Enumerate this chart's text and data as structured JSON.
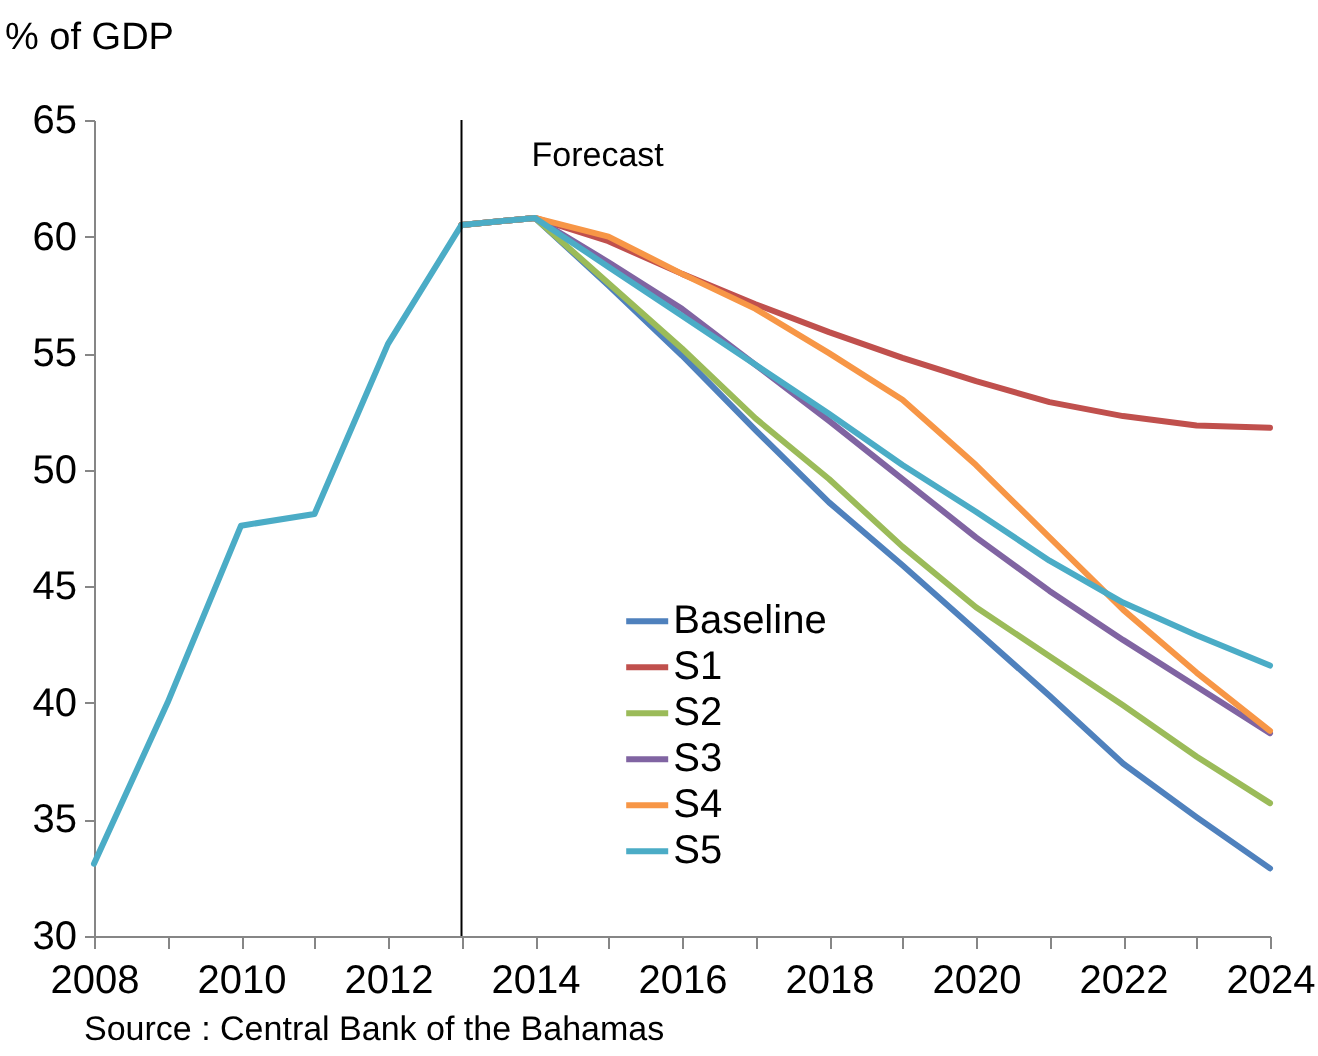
{
  "chart_data": {
    "type": "line",
    "ylabel": "% of GDP",
    "x": [
      2008,
      2009,
      2010,
      2011,
      2012,
      2013,
      2014,
      2015,
      2016,
      2017,
      2018,
      2019,
      2020,
      2021,
      2022,
      2023,
      2024
    ],
    "xlim": [
      2008,
      2024
    ],
    "xticks": [
      2008,
      {
        "value": 2009,
        "label": null
      },
      2010,
      {
        "value": 2011,
        "label": null
      },
      2012,
      {
        "value": 2013,
        "label": null
      },
      2014,
      {
        "value": 2015,
        "label": null
      },
      2016,
      {
        "value": 2017,
        "label": null
      },
      2018,
      {
        "value": 2019,
        "label": null
      },
      2020,
      {
        "value": 2021,
        "label": null
      },
      2022,
      {
        "value": 2023,
        "label": null
      },
      2024
    ],
    "ylim": [
      30,
      65
    ],
    "yticks": [
      30,
      35,
      40,
      45,
      50,
      55,
      60,
      65
    ],
    "series": [
      {
        "name": "Baseline",
        "color": "#4f81bd",
        "values": [
          null,
          null,
          null,
          null,
          null,
          60.5,
          60.8,
          57.9,
          54.9,
          51.7,
          48.6,
          45.9,
          43.1,
          40.3,
          37.4,
          35.1,
          32.9
        ]
      },
      {
        "name": "S1",
        "color": "#c0504d",
        "values": [
          null,
          null,
          null,
          null,
          null,
          60.5,
          60.8,
          59.8,
          58.4,
          57.1,
          55.9,
          54.8,
          53.8,
          52.9,
          52.3,
          51.9,
          51.8
        ]
      },
      {
        "name": "S2",
        "color": "#9bbb59",
        "values": [
          null,
          null,
          null,
          null,
          null,
          60.5,
          60.8,
          58.0,
          55.2,
          52.2,
          49.6,
          46.7,
          44.1,
          42.0,
          39.9,
          37.7,
          35.7
        ]
      },
      {
        "name": "S3",
        "color": "#8064a2",
        "values": [
          null,
          null,
          null,
          null,
          null,
          60.5,
          60.8,
          58.9,
          56.9,
          54.5,
          52.1,
          49.6,
          47.1,
          44.8,
          42.7,
          40.7,
          38.7
        ]
      },
      {
        "name": "S4",
        "color": "#f79646",
        "values": [
          null,
          null,
          null,
          null,
          null,
          60.5,
          60.8,
          60.0,
          58.4,
          56.9,
          55.0,
          53.0,
          50.2,
          47.1,
          44.0,
          41.3,
          38.8
        ]
      },
      {
        "name": "S5",
        "color": "#4bacc6",
        "values": [
          33.1,
          40.0,
          47.6,
          48.1,
          55.4,
          60.5,
          60.8,
          58.7,
          56.6,
          54.5,
          52.4,
          50.2,
          48.2,
          46.1,
          44.3,
          42.9,
          41.6
        ]
      }
    ],
    "ref_lines": [
      {
        "axis": "x",
        "value": 2013,
        "label": "Forecast"
      }
    ],
    "legend": "bottom",
    "annotations": [
      "Source : Central Bank of the Bahamas"
    ]
  }
}
